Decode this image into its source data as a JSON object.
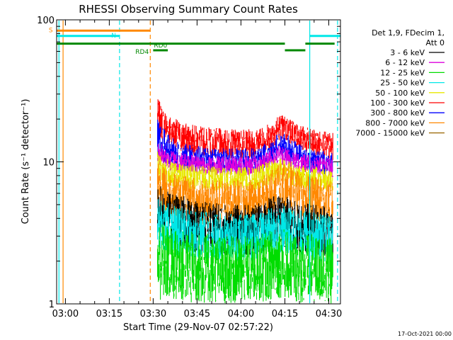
{
  "chart_data": {
    "type": "line",
    "title": "RHESSI Observing Summary Count Rates",
    "xlabel": "Start Time (29-Nov-07 02:57:22)",
    "ylabel": "Count Rate (s⁻¹ detector⁻¹)",
    "yscale": "log",
    "ylim": [
      1,
      100
    ],
    "xlim_minutes": [
      -3,
      94
    ],
    "x_ticks": [
      {
        "label": "03:00",
        "minute": 0
      },
      {
        "label": "03:15",
        "minute": 15
      },
      {
        "label": "03:30",
        "minute": 30
      },
      {
        "label": "03:45",
        "minute": 45
      },
      {
        "label": "04:00",
        "minute": 60
      },
      {
        "label": "04:15",
        "minute": 75
      },
      {
        "label": "04:30",
        "minute": 90
      }
    ],
    "y_tick_labels": [
      {
        "label": "1",
        "value": 1
      },
      {
        "label": "10",
        "value": 10
      },
      {
        "label": "100",
        "value": 100
      }
    ],
    "legend": {
      "header": [
        "Det 1,9, FDecim 1,",
        "Att 0"
      ],
      "placement": "right",
      "entries": [
        {
          "label": "3 - 6 keV",
          "color": "#000000"
        },
        {
          "label": "6 - 12 keV",
          "color": "#dd00dd"
        },
        {
          "label": "12 - 25 keV",
          "color": "#00dd00"
        },
        {
          "label": "25 - 50 keV",
          "color": "#00e8e8"
        },
        {
          "label": "50 - 100 keV",
          "color": "#e8e800"
        },
        {
          "label": "100 - 300 keV",
          "color": "#ff0000"
        },
        {
          "label": "300 - 800 keV",
          "color": "#0000ff"
        },
        {
          "label": "800 - 7000 keV",
          "color": "#ff8800"
        },
        {
          "label": "7000 - 15000 keV",
          "color": "#996600"
        }
      ]
    },
    "series": [
      {
        "name": "100 - 300 keV",
        "color": "#ff0000",
        "band": [
          [
            31.5,
            15.5,
            28
          ],
          [
            33,
            14,
            25
          ],
          [
            36,
            12.5,
            21
          ],
          [
            40,
            11.5,
            19
          ],
          [
            45,
            11,
            18
          ],
          [
            50,
            11,
            17.5
          ],
          [
            55,
            10.5,
            17
          ],
          [
            60,
            10.5,
            17
          ],
          [
            65,
            10.5,
            17
          ],
          [
            70,
            12,
            19
          ],
          [
            73,
            14,
            22
          ],
          [
            76,
            13.5,
            21
          ],
          [
            80,
            12,
            18.5
          ],
          [
            84,
            11,
            17
          ],
          [
            88,
            10.5,
            16.5
          ],
          [
            91.5,
            10,
            16
          ]
        ]
      },
      {
        "name": "300 - 800 keV",
        "color": "#0000ff",
        "band": [
          [
            31.5,
            11,
            20
          ],
          [
            33,
            10,
            18
          ],
          [
            36,
            9,
            15
          ],
          [
            40,
            8.7,
            13.5
          ],
          [
            45,
            8.5,
            13
          ],
          [
            50,
            8.5,
            12.5
          ],
          [
            55,
            8.3,
            12.5
          ],
          [
            60,
            8.3,
            12.5
          ],
          [
            65,
            8.3,
            12.5
          ],
          [
            70,
            9.5,
            14
          ],
          [
            73,
            10.5,
            16
          ],
          [
            76,
            10,
            15.5
          ],
          [
            80,
            9,
            13.5
          ],
          [
            84,
            8.5,
            12.5
          ],
          [
            88,
            8.2,
            12
          ],
          [
            91.5,
            7.8,
            11.5
          ]
        ]
      },
      {
        "name": "6 - 12 keV",
        "color": "#dd00dd",
        "band": [
          [
            31.5,
            9.5,
            14
          ],
          [
            36,
            8.5,
            12
          ],
          [
            45,
            8.2,
            11
          ],
          [
            55,
            8,
            11
          ],
          [
            65,
            8,
            11
          ],
          [
            73,
            9.5,
            13
          ],
          [
            80,
            8.5,
            11.5
          ],
          [
            91.5,
            7.8,
            10.5
          ]
        ]
      },
      {
        "name": "50 - 100 keV",
        "color": "#e8e800",
        "band": [
          [
            31.5,
            7,
            12
          ],
          [
            36,
            6.5,
            10
          ],
          [
            45,
            6.3,
            9.5
          ],
          [
            55,
            6.2,
            9.2
          ],
          [
            65,
            6.2,
            9.2
          ],
          [
            73,
            7.2,
            11
          ],
          [
            80,
            6.5,
            9.5
          ],
          [
            91.5,
            6,
            9
          ]
        ]
      },
      {
        "name": "800 - 7000 keV",
        "color": "#ff8800",
        "band": [
          [
            31.5,
            5,
            11
          ],
          [
            33,
            4.5,
            9.5
          ],
          [
            36,
            4,
            8.5
          ],
          [
            40,
            3.8,
            8
          ],
          [
            45,
            3.6,
            7.8
          ],
          [
            50,
            3.5,
            7.5
          ],
          [
            55,
            3.5,
            7.5
          ],
          [
            60,
            3.5,
            7.5
          ],
          [
            65,
            3.5,
            7.5
          ],
          [
            70,
            4.2,
            8.5
          ],
          [
            73,
            4.8,
            10
          ],
          [
            76,
            4.5,
            9.5
          ],
          [
            80,
            4,
            8.5
          ],
          [
            84,
            3.8,
            8
          ],
          [
            88,
            3.6,
            7.6
          ],
          [
            91.5,
            3.5,
            7.2
          ]
        ]
      },
      {
        "name": "3 - 6 keV",
        "color": "#000000",
        "band": [
          [
            31.5,
            2.8,
            7
          ],
          [
            36,
            2.5,
            6
          ],
          [
            45,
            2.3,
            5.5
          ],
          [
            55,
            2.2,
            5
          ],
          [
            65,
            2.2,
            5
          ],
          [
            73,
            2.6,
            6
          ],
          [
            80,
            2.3,
            5.2
          ],
          [
            91.5,
            2.1,
            4.8
          ]
        ]
      },
      {
        "name": "25 - 50 keV",
        "color": "#00e8e8",
        "band": [
          [
            31.5,
            2.5,
            5.5
          ],
          [
            36,
            2.2,
            5
          ],
          [
            45,
            2.1,
            4.5
          ],
          [
            55,
            2,
            4.3
          ],
          [
            65,
            2,
            4.3
          ],
          [
            73,
            2.3,
            5
          ],
          [
            80,
            2.1,
            4.6
          ],
          [
            91.5,
            1.9,
            4.2
          ]
        ]
      },
      {
        "name": "12 - 25 keV",
        "color": "#00dd00",
        "band": [
          [
            31.5,
            1.05,
            4
          ],
          [
            36,
            1.02,
            3.5
          ],
          [
            45,
            1.0,
            3.2
          ],
          [
            55,
            1.0,
            3
          ],
          [
            65,
            1.0,
            3
          ],
          [
            73,
            1.1,
            3.5
          ],
          [
            80,
            1.0,
            3.2
          ],
          [
            91.5,
            1.0,
            2.9
          ]
        ]
      }
    ],
    "flag_bars": [
      {
        "label": "S",
        "color": "#ff8800",
        "y_value": 84,
        "segments": [
          [
            -3,
            29
          ]
        ]
      },
      {
        "label": "N",
        "color": "#00e8e8",
        "y_value": 77,
        "segments": [
          [
            -3,
            18.5
          ],
          [
            83.5,
            94
          ]
        ]
      },
      {
        "label": "RD0",
        "color": "#008800",
        "y_value": 68,
        "segments": [
          [
            -3,
            75
          ],
          [
            82,
            92
          ]
        ]
      },
      {
        "label": "RD4",
        "color": "#008800",
        "y_value": 61,
        "segments": [
          [
            30,
            35
          ],
          [
            75,
            82
          ]
        ]
      }
    ],
    "vertical_markers": [
      {
        "minute": -2.2,
        "color": "#00e8e8",
        "style": "solid"
      },
      {
        "minute": -0.8,
        "color": "#ff8800",
        "style": "solid"
      },
      {
        "minute": 18.5,
        "color": "#00e8e8",
        "style": "dashed"
      },
      {
        "minute": 29,
        "color": "#ff8800",
        "style": "dashed"
      },
      {
        "minute": 83.5,
        "color": "#00e8e8",
        "style": "solid"
      },
      {
        "minute": 93,
        "color": "#00e8e8",
        "style": "dashed"
      }
    ]
  },
  "footer": {
    "timestamp": "17-Oct-2021 00:00"
  }
}
